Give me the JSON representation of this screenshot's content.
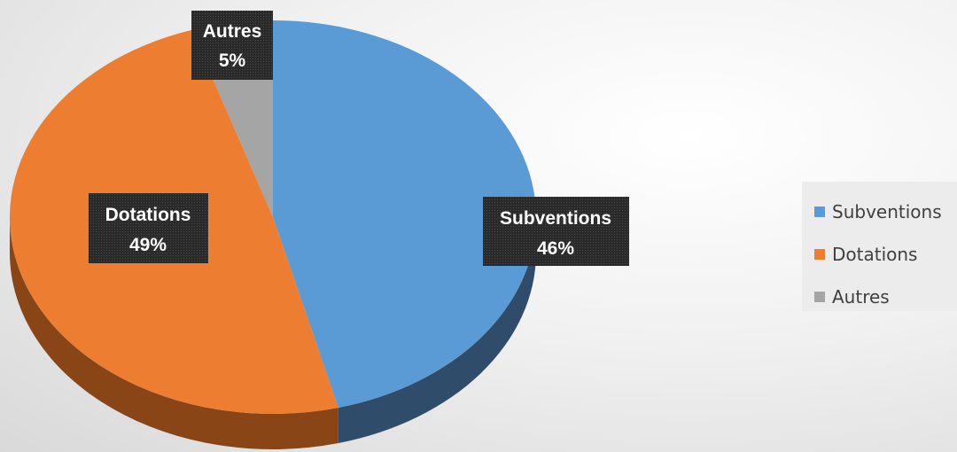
{
  "chart_data": {
    "type": "pie",
    "title": "",
    "categories": [
      "Subventions",
      "Dotations",
      "Autres"
    ],
    "values": [
      46,
      49,
      5
    ],
    "data_labels": [
      {
        "name": "Subventions",
        "percent": "46%"
      },
      {
        "name": "Dotations",
        "percent": "49%"
      },
      {
        "name": "Autres",
        "percent": "5%"
      }
    ],
    "colors": [
      "#5b9bd5",
      "#ed7d31",
      "#a5a5a5"
    ],
    "side_colors": [
      "#2f4d6a",
      "#8a4516",
      "#6b6b6b"
    ],
    "legend_position": "right",
    "style": "3d"
  },
  "legend": {
    "items": [
      {
        "label": "Subventions",
        "color": "#5b9bd5"
      },
      {
        "label": "Dotations",
        "color": "#ed7d31"
      },
      {
        "label": "Autres",
        "color": "#a5a5a5"
      }
    ]
  }
}
